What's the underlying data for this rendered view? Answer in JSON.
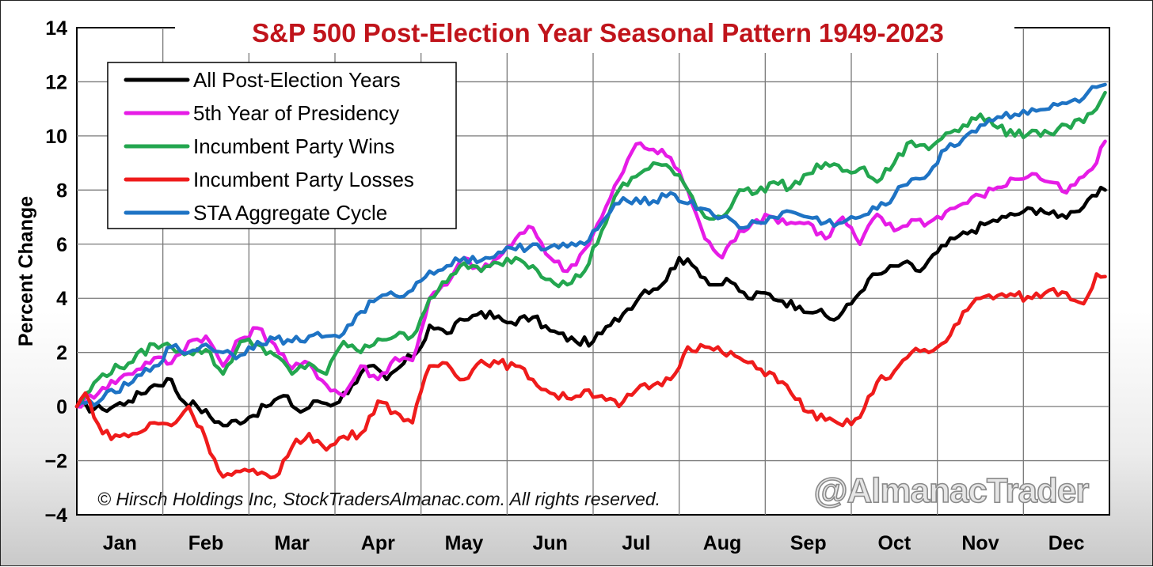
{
  "chart_data": {
    "type": "line",
    "title": "S&P 500 Post-Election Year Seasonal Pattern 1949-2023",
    "ylabel": "Percent Change",
    "xlabel": "",
    "ylim": [
      -4,
      14
    ],
    "yticks": [
      "−4",
      "−2",
      "0",
      "2",
      "4",
      "6",
      "8",
      "10",
      "12",
      "14"
    ],
    "ytick_values": [
      -4,
      -2,
      0,
      2,
      4,
      6,
      8,
      10,
      12,
      14
    ],
    "categories": [
      "Jan",
      "Feb",
      "Mar",
      "Apr",
      "May",
      "Jun",
      "Jul",
      "Aug",
      "Sep",
      "Oct",
      "Nov",
      "Dec"
    ],
    "grid": true,
    "legend_position": "top-left",
    "x_units": "months from Jan 1 (0-12)",
    "series": [
      {
        "name": "All Post-Election Years",
        "color": "#000000",
        "x": [
          0,
          0.3,
          0.6,
          0.9,
          1.1,
          1.2,
          1.4,
          1.7,
          2.0,
          2.2,
          2.4,
          2.6,
          2.8,
          3.0,
          3.2,
          3.4,
          3.6,
          3.8,
          4.0,
          4.1,
          4.3,
          4.5,
          4.7,
          5.0,
          5.3,
          5.5,
          5.8,
          6.0,
          6.2,
          6.4,
          6.6,
          6.8,
          7.0,
          7.2,
          7.4,
          7.6,
          7.8,
          8.0,
          8.2,
          8.4,
          8.6,
          8.8,
          9.0,
          9.2,
          9.4,
          9.6,
          9.8,
          10.0,
          10.2,
          10.4,
          10.6,
          10.8,
          11.0,
          11.2,
          11.4,
          11.6,
          11.8,
          11.95
        ],
        "values": [
          0,
          -0.1,
          0.2,
          0.8,
          1.0,
          0.3,
          0.0,
          -0.7,
          -0.4,
          0.0,
          0.4,
          -0.2,
          0.2,
          0.1,
          0.8,
          1.5,
          1.0,
          1.6,
          2.2,
          3.0,
          2.7,
          3.2,
          3.5,
          3.1,
          3.3,
          2.8,
          2.4,
          2.4,
          3.0,
          3.6,
          4.3,
          4.5,
          5.5,
          5.1,
          4.5,
          4.6,
          4.0,
          4.2,
          3.9,
          3.7,
          3.5,
          3.2,
          3.8,
          4.7,
          5.0,
          5.3,
          5.0,
          5.7,
          6.2,
          6.5,
          6.8,
          7.0,
          7.2,
          7.3,
          7.0,
          7.2,
          7.8,
          8.0
        ]
      },
      {
        "name": "5th Year of Presidency",
        "color": "#e61ce6",
        "x": [
          0,
          0.3,
          0.6,
          0.9,
          1.1,
          1.3,
          1.5,
          1.7,
          1.9,
          2.1,
          2.3,
          2.5,
          2.7,
          2.9,
          3.1,
          3.3,
          3.5,
          3.7,
          3.9,
          4.1,
          4.3,
          4.5,
          4.7,
          4.9,
          5.1,
          5.3,
          5.5,
          5.7,
          5.9,
          6.1,
          6.3,
          6.5,
          6.7,
          6.9,
          7.1,
          7.3,
          7.5,
          7.7,
          7.9,
          8.1,
          8.3,
          8.5,
          8.7,
          8.9,
          9.1,
          9.3,
          9.5,
          9.7,
          9.9,
          10.1,
          10.3,
          10.5,
          10.7,
          10.9,
          11.1,
          11.3,
          11.5,
          11.7,
          11.85,
          11.95
        ],
        "values": [
          0,
          0.7,
          1.2,
          1.8,
          1.6,
          2.4,
          2.6,
          1.5,
          2.5,
          2.9,
          2.3,
          1.4,
          1.6,
          0.8,
          0.4,
          1.5,
          1.0,
          1.8,
          1.7,
          4.0,
          4.5,
          5.5,
          5.0,
          5.5,
          6.2,
          6.6,
          5.5,
          5.0,
          5.8,
          7.0,
          8.4,
          9.7,
          9.5,
          9.2,
          8.0,
          6.2,
          5.5,
          6.5,
          6.9,
          7.0,
          6.8,
          6.8,
          6.2,
          7.0,
          6.0,
          7.1,
          6.5,
          6.9,
          6.8,
          7.2,
          7.5,
          7.8,
          8.1,
          8.4,
          8.6,
          8.3,
          7.9,
          8.5,
          9.0,
          9.8
        ]
      },
      {
        "name": "Incumbent Party Wins",
        "color": "#23a64f",
        "x": [
          0,
          0.3,
          0.6,
          0.9,
          1.1,
          1.3,
          1.5,
          1.7,
          1.9,
          2.1,
          2.3,
          2.5,
          2.7,
          2.9,
          3.1,
          3.3,
          3.5,
          3.7,
          3.9,
          4.1,
          4.3,
          4.5,
          4.7,
          4.9,
          5.1,
          5.3,
          5.5,
          5.7,
          5.9,
          6.1,
          6.3,
          6.5,
          6.7,
          6.9,
          7.1,
          7.3,
          7.5,
          7.7,
          7.9,
          8.1,
          8.3,
          8.5,
          8.7,
          8.9,
          9.1,
          9.3,
          9.5,
          9.7,
          9.9,
          10.1,
          10.3,
          10.5,
          10.7,
          10.9,
          11.1,
          11.3,
          11.5,
          11.7,
          11.85,
          11.95
        ],
        "values": [
          0,
          1.2,
          1.6,
          2.3,
          2.2,
          2.0,
          2.1,
          1.2,
          2.4,
          2.3,
          1.9,
          1.2,
          1.6,
          1.2,
          2.4,
          2.0,
          2.5,
          2.6,
          2.6,
          4.0,
          4.6,
          5.3,
          5.0,
          5.3,
          5.5,
          5.2,
          4.7,
          4.5,
          5.0,
          6.5,
          8.0,
          8.5,
          9.0,
          8.8,
          8.0,
          7.0,
          7.0,
          8.0,
          7.9,
          8.3,
          8.1,
          8.6,
          9.0,
          8.7,
          8.8,
          8.3,
          9.0,
          9.8,
          9.5,
          10.1,
          10.4,
          10.8,
          10.3,
          10.0,
          10.2,
          10.1,
          10.4,
          10.5,
          11.0,
          11.6
        ]
      },
      {
        "name": "Incumbent Party Losses",
        "color": "#ef1b1b",
        "x": [
          0,
          0.1,
          0.3,
          0.5,
          0.7,
          0.9,
          1.1,
          1.3,
          1.5,
          1.7,
          1.9,
          2.1,
          2.3,
          2.5,
          2.7,
          2.9,
          3.1,
          3.3,
          3.5,
          3.7,
          3.9,
          4.1,
          4.3,
          4.5,
          4.7,
          4.9,
          5.1,
          5.3,
          5.5,
          5.7,
          5.9,
          6.1,
          6.3,
          6.5,
          6.7,
          6.9,
          7.1,
          7.3,
          7.5,
          7.7,
          7.9,
          8.1,
          8.3,
          8.5,
          8.7,
          8.9,
          9.1,
          9.3,
          9.5,
          9.7,
          9.9,
          10.1,
          10.3,
          10.5,
          10.7,
          10.9,
          11.1,
          11.3,
          11.5,
          11.7,
          11.85,
          11.95
        ],
        "values": [
          0,
          0.5,
          -1.0,
          -1.1,
          -1.0,
          -0.6,
          -0.7,
          0.0,
          -1.2,
          -2.6,
          -2.4,
          -2.5,
          -2.6,
          -1.5,
          -1.0,
          -1.6,
          -1.1,
          -1.0,
          0.2,
          -0.2,
          -0.6,
          1.5,
          1.6,
          1.0,
          1.7,
          1.6,
          1.5,
          1.0,
          0.5,
          0.3,
          0.6,
          0.4,
          0.0,
          0.6,
          0.8,
          1.0,
          2.2,
          2.2,
          2.0,
          1.8,
          1.4,
          1.2,
          0.5,
          -0.2,
          -0.5,
          -0.7,
          -0.4,
          0.9,
          1.3,
          2.0,
          2.0,
          2.4,
          3.5,
          4.0,
          4.1,
          4.1,
          4.0,
          4.3,
          4.2,
          3.8,
          4.9,
          4.8
        ]
      },
      {
        "name": "STA Aggregate Cycle",
        "color": "#1e73c4",
        "x": [
          0,
          0.3,
          0.6,
          0.9,
          1.1,
          1.3,
          1.5,
          1.7,
          1.9,
          2.1,
          2.3,
          2.5,
          2.7,
          2.9,
          3.1,
          3.3,
          3.5,
          3.7,
          3.9,
          4.1,
          4.3,
          4.5,
          4.7,
          4.9,
          5.1,
          5.3,
          5.5,
          5.7,
          5.9,
          6.1,
          6.3,
          6.5,
          6.7,
          6.9,
          7.1,
          7.3,
          7.5,
          7.7,
          7.9,
          8.1,
          8.3,
          8.5,
          8.7,
          8.9,
          9.1,
          9.3,
          9.5,
          9.7,
          9.9,
          10.1,
          10.3,
          10.5,
          10.7,
          10.9,
          11.1,
          11.3,
          11.5,
          11.7,
          11.85,
          11.95
        ],
        "values": [
          0,
          0.3,
          0.8,
          1.5,
          2.2,
          2.0,
          2.3,
          2.0,
          1.9,
          2.4,
          2.5,
          2.4,
          2.6,
          2.6,
          2.7,
          3.5,
          4.0,
          4.1,
          4.3,
          5.0,
          5.2,
          5.5,
          5.4,
          5.7,
          5.8,
          6.0,
          5.9,
          5.9,
          6.0,
          6.8,
          7.5,
          7.7,
          7.6,
          7.9,
          7.5,
          7.3,
          7.0,
          6.6,
          6.8,
          7.0,
          7.2,
          7.0,
          6.8,
          6.8,
          7.0,
          7.3,
          7.8,
          8.4,
          8.6,
          9.5,
          9.9,
          10.4,
          10.7,
          10.8,
          11.0,
          11.0,
          11.2,
          11.4,
          11.8,
          11.9
        ]
      }
    ]
  },
  "copyright": "© Hirsch Holdings Inc, StockTradersAlmanac.com. All rights reserved.",
  "watermark": "@AlmanacTrader"
}
